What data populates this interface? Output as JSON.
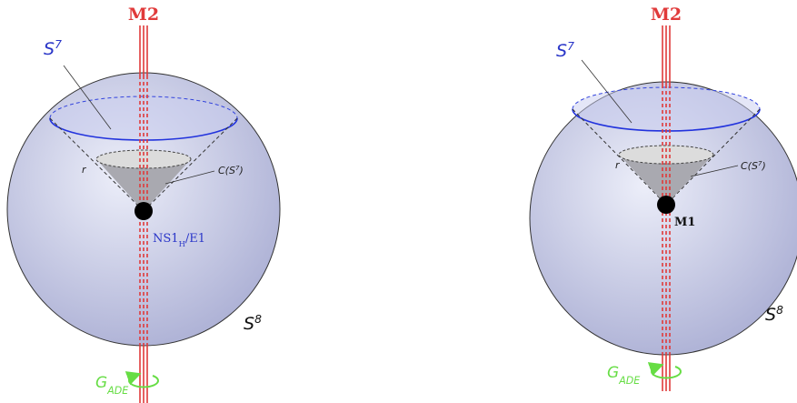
{
  "panels": [
    {
      "top_label": [
        {
          "text": "M2"
        }
      ],
      "outer_label": [
        {
          "text": "S"
        },
        {
          "text": "7",
          "sup": true
        }
      ],
      "cone_label": [
        {
          "text": "C(S"
        },
        {
          "text": "7",
          "sup": true
        },
        {
          "text": ")"
        }
      ],
      "radius_label": [
        {
          "text": "r"
        }
      ],
      "apex_label": [
        {
          "text": "NS1"
        },
        {
          "text": "H",
          "sub": true
        },
        {
          "text": "/E1"
        }
      ],
      "sphere_label": [
        {
          "text": "S"
        },
        {
          "text": "8",
          "sup": true
        }
      ],
      "group_label": [
        {
          "text": "G"
        },
        {
          "text": "ADE",
          "sub": true
        }
      ]
    },
    {
      "top_label": [
        {
          "text": "M2"
        }
      ],
      "outer_label": [
        {
          "text": "S"
        },
        {
          "text": "7",
          "sup": true
        }
      ],
      "cone_label": [
        {
          "text": "C(S"
        },
        {
          "text": "7",
          "sup": true
        },
        {
          "text": ")"
        }
      ],
      "radius_label": [
        {
          "text": "r"
        }
      ],
      "apex_label": [
        {
          "text": "M1"
        }
      ],
      "sphere_label": [
        {
          "text": "S"
        },
        {
          "text": "8",
          "sup": true
        }
      ],
      "group_label": [
        {
          "text": "G"
        },
        {
          "text": "ADE",
          "sub": true
        }
      ]
    }
  ]
}
